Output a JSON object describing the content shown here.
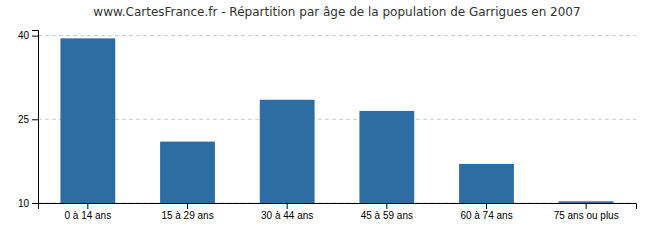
{
  "chart_data": {
    "type": "bar",
    "title": "www.CartesFrance.fr - Répartition par âge de la population de Garrigues en 2007",
    "categories": [
      "0 à 14 ans",
      "15 à 29 ans",
      "30 à 44 ans",
      "45 à 59 ans",
      "60 à 74 ans",
      "75 ans ou plus"
    ],
    "values": [
      39.5,
      21.0,
      28.5,
      26.5,
      17.0,
      10.3
    ],
    "color": "#2e6da4",
    "ylim": [
      10,
      41
    ],
    "yticks": [
      10,
      25,
      40
    ],
    "grid": true
  }
}
